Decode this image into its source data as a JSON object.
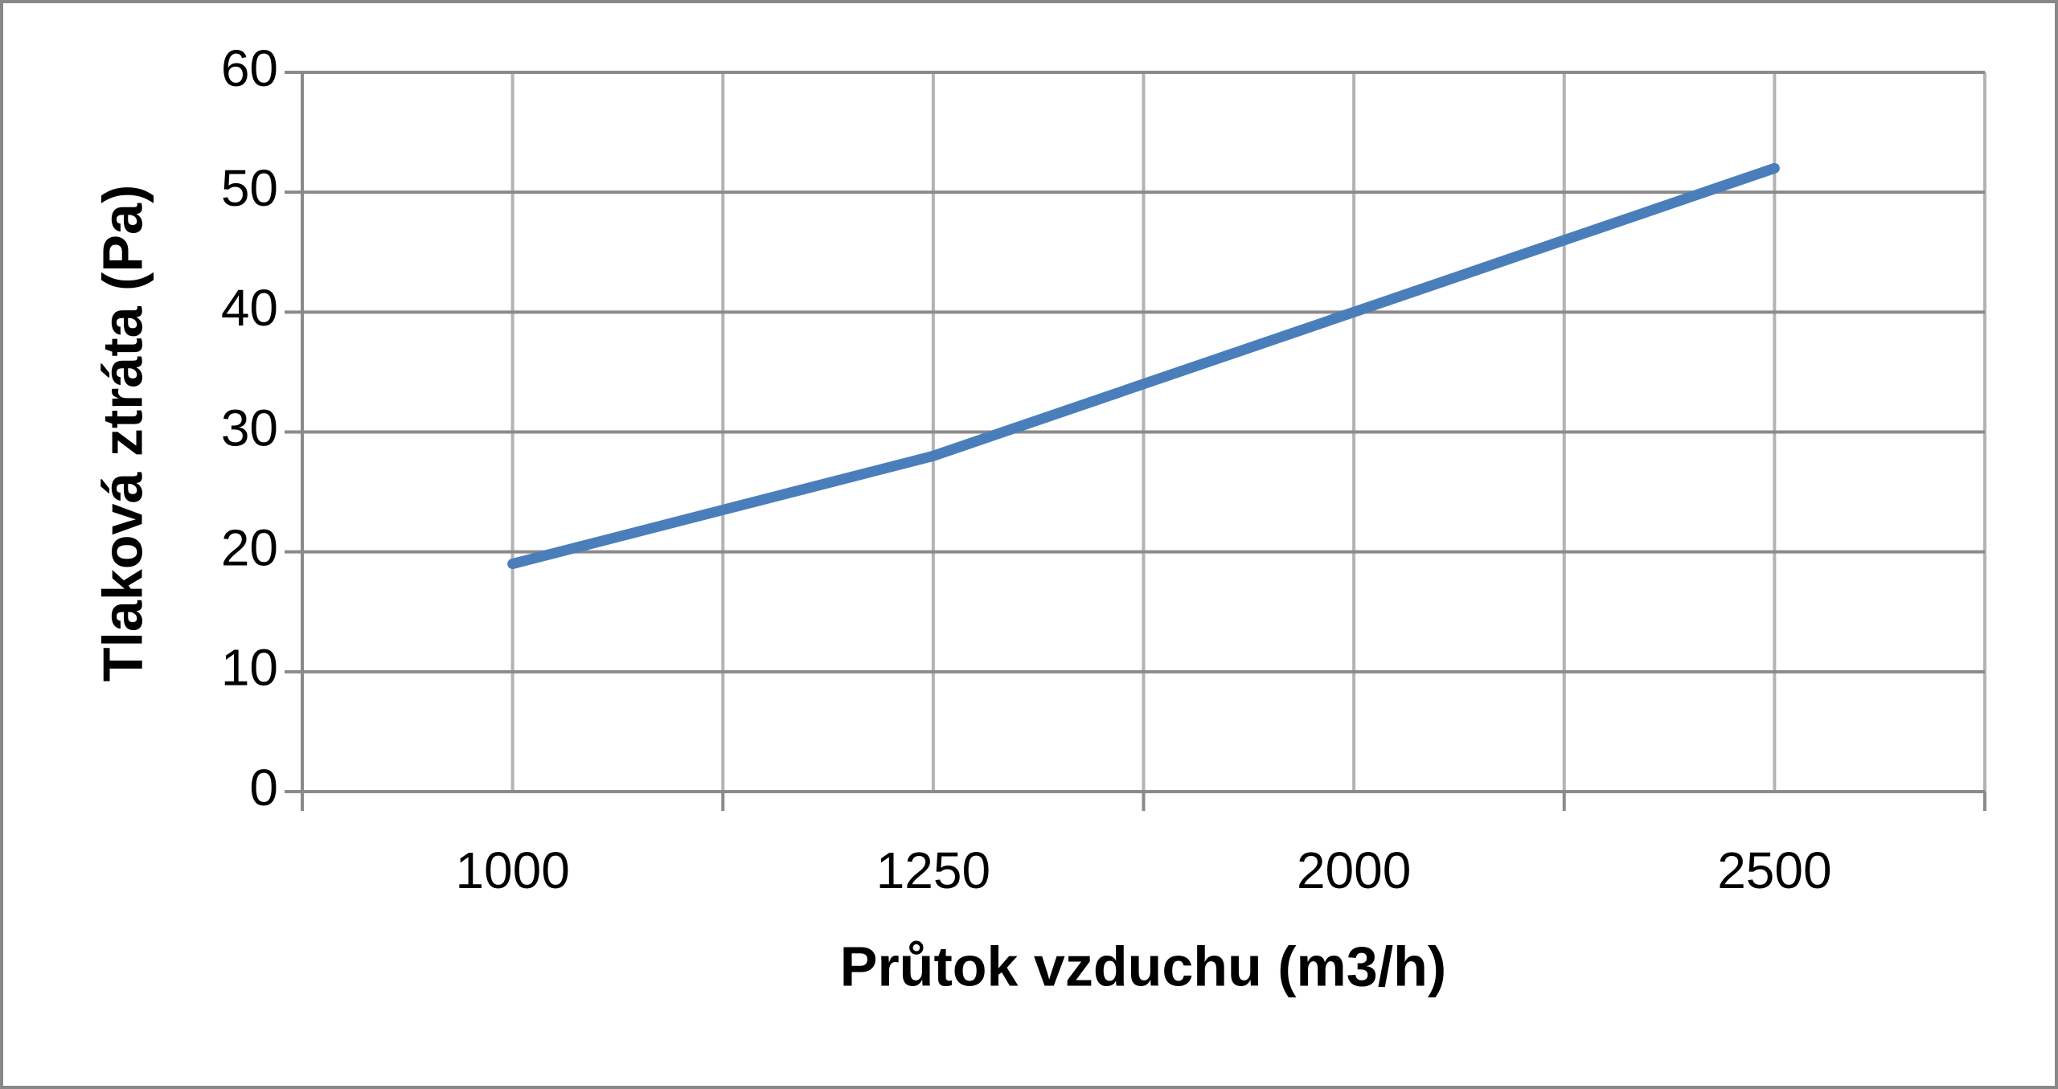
{
  "chart_data": {
    "type": "line",
    "x_label": "Průtok vzduchu (m3/h)",
    "y_label": "Tlaková ztráta (Pa)",
    "categories": [
      "1000",
      "1250",
      "2000",
      "2500"
    ],
    "values": [
      19,
      28,
      40,
      52
    ],
    "color": "#4a7ebb",
    "ylim": [
      0,
      60
    ],
    "yticks": [
      0,
      10,
      20,
      30,
      40,
      50,
      60
    ],
    "grid": true
  }
}
